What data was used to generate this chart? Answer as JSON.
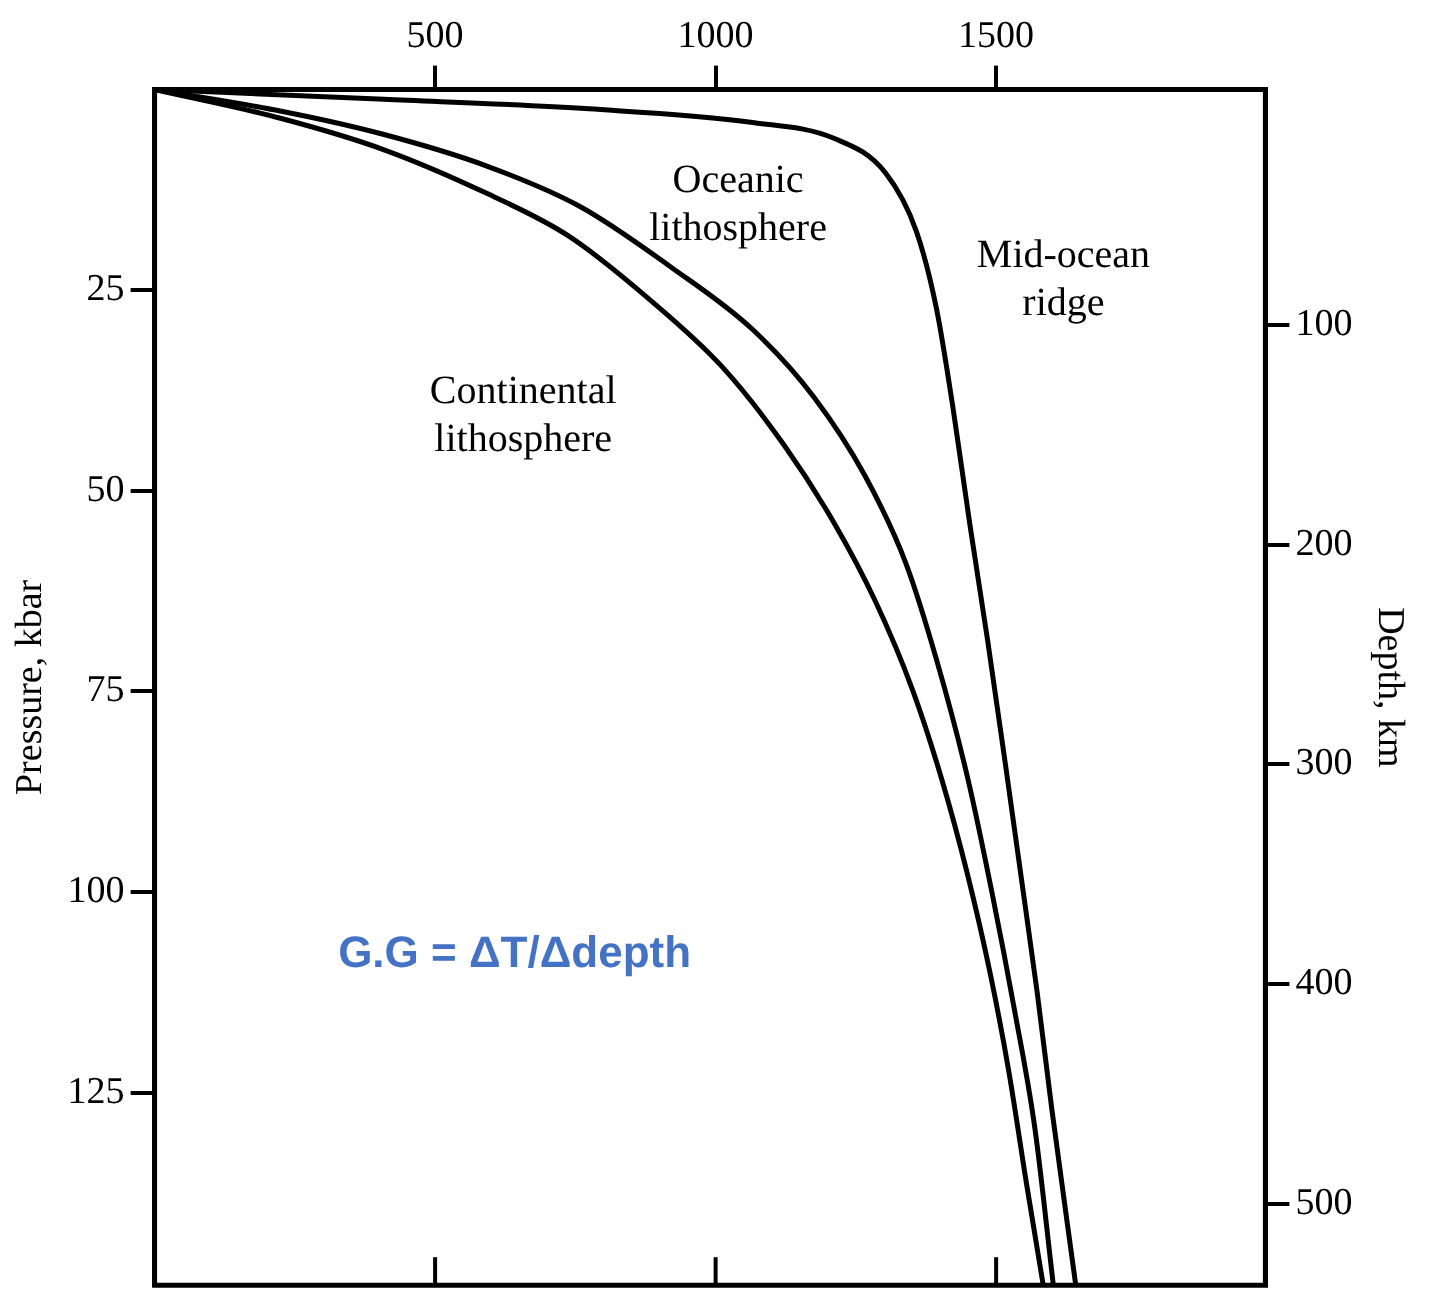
{
  "chart_data": {
    "type": "line",
    "ylabel": "Pressure, kbar",
    "y2label": "Depth, km",
    "xlim": [
      0,
      1980
    ],
    "xticks": [
      500,
      1000,
      1500
    ],
    "ylim": [
      149,
      0
    ],
    "yticks": [
      25,
      50,
      75,
      100,
      125
    ],
    "y2lim": [
      537,
      -7
    ],
    "y2ticks": [
      100,
      200,
      300,
      400,
      500
    ],
    "grid": false,
    "legend": false,
    "marker": "none",
    "line_style": "solid",
    "annotations": [
      "G.G = ΔT/Δdepth"
    ],
    "series": [
      {
        "name": "Oceanic lithosphere",
        "color": "#000000",
        "x": [
          0,
          226,
          409,
          591,
          759,
          920,
          1066,
          1175,
          1266,
          1339,
          1394,
          1449,
          1493,
          1533,
          1569,
          1602
        ],
        "values": [
          0,
          2.7,
          5.6,
          9.5,
          14.6,
          22.1,
          29.9,
          38.3,
          48.1,
          59.0,
          71.1,
          85.7,
          100.2,
          114.8,
          129.4,
          149
        ]
      },
      {
        "name": "Mid-ocean ridge",
        "color": "#000000",
        "x": [
          0,
          409,
          774,
          1066,
          1212,
          1303,
          1358,
          1394,
          1423,
          1453,
          1485,
          1515,
          1544,
          1573,
          1599,
          1642
        ],
        "values": [
          0,
          1.2,
          2.4,
          4.1,
          6.1,
          10.4,
          17.7,
          27.4,
          39.6,
          54.1,
          68.7,
          83.3,
          97.8,
          112.4,
          126.9,
          149
        ]
      },
      {
        "name": "Continental lithosphere",
        "color": "#000000",
        "x": [
          0,
          226,
          409,
          591,
          737,
          883,
          1011,
          1121,
          1212,
          1285,
          1351,
          1402,
          1449,
          1489,
          1522,
          1555,
          1584
        ],
        "values": [
          0,
          3.6,
          7.5,
          12.9,
          18.2,
          26.2,
          34.5,
          44.2,
          54.1,
          63.8,
          74.8,
          85.7,
          97.8,
          110.0,
          122.1,
          136.7,
          149
        ]
      }
    ]
  }
}
